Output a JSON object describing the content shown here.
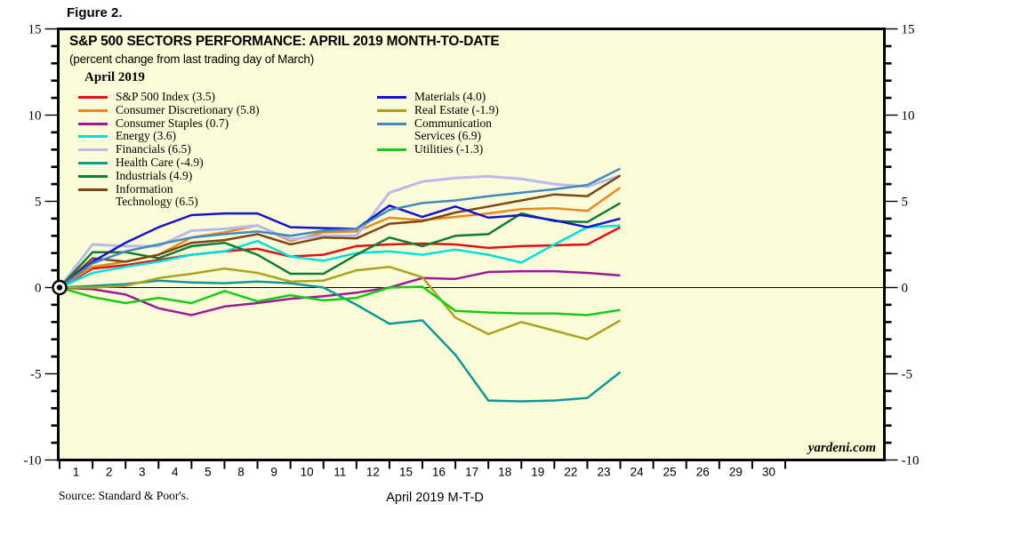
{
  "figure_label": "Figure 2.",
  "title": "S&P 500 SECTORS PERFORMANCE: APRIL 2019 MONTH-TO-DATE",
  "subtitle": "(percent change from last trading day of March)",
  "watermark": "yardeni.com",
  "source": "Source: Standard & Poor's.",
  "x_axis_title": "April 2019 M-T-D",
  "colors": {
    "plot_bg": "#FBFBD8",
    "border": "#000000",
    "zero_line": "#000000",
    "text": "#000000"
  },
  "legend": {
    "title": "April 2019",
    "columns": [
      [
        {
          "series_index": 0,
          "label_lines": [
            "S&P 500 Index (3.5)"
          ]
        },
        {
          "series_index": 1,
          "label_lines": [
            "Consumer Discretionary (5.8)"
          ]
        },
        {
          "series_index": 2,
          "label_lines": [
            "Consumer Staples (0.7)"
          ]
        },
        {
          "series_index": 3,
          "label_lines": [
            "Energy (3.6)"
          ]
        },
        {
          "series_index": 4,
          "label_lines": [
            "Financials (6.5)"
          ]
        },
        {
          "series_index": 5,
          "label_lines": [
            "Health Care (-4.9)"
          ]
        },
        {
          "series_index": 6,
          "label_lines": [
            "Industrials (4.9)"
          ]
        },
        {
          "series_index": 7,
          "label_lines": [
            "Information",
            "Technology (6.5)"
          ]
        }
      ],
      [
        {
          "series_index": 8,
          "label_lines": [
            "Materials (4.0)"
          ]
        },
        {
          "series_index": 9,
          "label_lines": [
            "Real Estate (-1.9)"
          ]
        },
        {
          "series_index": 10,
          "label_lines": [
            "Communication",
            "Services (6.9)"
          ]
        },
        {
          "series_index": 11,
          "label_lines": [
            "Utilities (-1.3)"
          ]
        }
      ]
    ]
  },
  "chart_data": {
    "type": "line",
    "title": "S&P 500 SECTORS PERFORMANCE: APRIL 2019 MONTH-TO-DATE",
    "subtitle": "(percent change from last trading day of March)",
    "xlabel": "April 2019 M-T-D",
    "ylabel": "percent change from last trading day of March",
    "ylim": [
      -10,
      15
    ],
    "y_ticks": [
      15,
      10,
      5,
      0,
      -5,
      -10
    ],
    "y_minor_tick_step": 1,
    "grid": false,
    "legend_position": "inside top-left, two columns",
    "x_tick_labels": [
      "1",
      "2",
      "3",
      "4",
      "5",
      "8",
      "9",
      "10",
      "11",
      "12",
      "15",
      "16",
      "17",
      "18",
      "19",
      "22",
      "23",
      "24",
      "25",
      "26",
      "29",
      "30"
    ],
    "x": [
      "Mar 29 base",
      "Apr 1",
      "Apr 2",
      "Apr 3",
      "Apr 4",
      "Apr 5",
      "Apr 8",
      "Apr 9",
      "Apr 10",
      "Apr 11",
      "Apr 12",
      "Apr 15",
      "Apr 16",
      "Apr 17",
      "Apr 18",
      "Apr 19",
      "Apr 22",
      "Apr 23"
    ],
    "origin_marker": "bullseye at (Mar 29, 0)",
    "series": [
      {
        "name": "S&P 500 Index",
        "final": 3.5,
        "color": "#E11212",
        "values": [
          0,
          1.1,
          1.3,
          1.6,
          1.9,
          2.1,
          2.25,
          1.8,
          1.9,
          2.4,
          2.5,
          2.55,
          2.5,
          2.3,
          2.4,
          2.45,
          2.5,
          3.5
        ]
      },
      {
        "name": "Consumer Discretionary",
        "final": 5.8,
        "color": "#E8891A",
        "values": [
          0,
          1.2,
          1.5,
          1.9,
          2.9,
          3.2,
          3.6,
          2.7,
          3.2,
          3.25,
          4.05,
          3.9,
          4.1,
          4.3,
          4.55,
          4.6,
          4.45,
          5.8
        ]
      },
      {
        "name": "Consumer Staples",
        "final": 0.7,
        "color": "#A0189A",
        "values": [
          0,
          -0.1,
          -0.4,
          -1.2,
          -1.6,
          -1.1,
          -0.9,
          -0.65,
          -0.5,
          -0.3,
          0.0,
          0.55,
          0.5,
          0.9,
          0.95,
          0.95,
          0.85,
          0.7
        ]
      },
      {
        "name": "Energy",
        "final": 3.6,
        "color": "#00DFDF",
        "values": [
          0,
          0.85,
          1.2,
          1.5,
          1.9,
          2.1,
          2.7,
          1.8,
          1.55,
          2.0,
          2.1,
          1.9,
          2.2,
          1.9,
          1.45,
          2.5,
          3.5,
          3.6
        ]
      },
      {
        "name": "Financials",
        "final": 6.5,
        "color": "#B9B9EF",
        "values": [
          0,
          2.5,
          2.4,
          2.4,
          3.3,
          3.4,
          3.6,
          2.8,
          3.0,
          3.0,
          5.5,
          6.15,
          6.35,
          6.45,
          6.3,
          6.0,
          5.85,
          6.5
        ]
      },
      {
        "name": "Health Care",
        "final": -4.9,
        "color": "#0E9898",
        "values": [
          0,
          0.1,
          0.2,
          0.4,
          0.3,
          0.25,
          0.35,
          0.25,
          0.0,
          -1.0,
          -2.1,
          -1.9,
          -3.9,
          -6.55,
          -6.6,
          -6.55,
          -6.4,
          -4.9
        ]
      },
      {
        "name": "Industrials",
        "final": 4.9,
        "color": "#0E7D33",
        "values": [
          0,
          2.05,
          2.05,
          1.7,
          2.4,
          2.6,
          1.9,
          0.8,
          0.8,
          1.9,
          2.9,
          2.4,
          3.0,
          3.1,
          4.3,
          3.85,
          3.8,
          4.9
        ]
      },
      {
        "name": "Information Technology",
        "final": 6.5,
        "color": "#7C4716",
        "values": [
          0,
          1.7,
          1.5,
          1.9,
          2.6,
          2.75,
          3.1,
          2.5,
          2.9,
          2.85,
          3.7,
          3.85,
          4.35,
          4.7,
          5.05,
          5.4,
          5.3,
          6.5
        ]
      },
      {
        "name": "Materials",
        "final": 4.0,
        "color": "#1414CE",
        "values": [
          0,
          1.5,
          2.6,
          3.5,
          4.2,
          4.3,
          4.3,
          3.5,
          3.45,
          3.4,
          4.75,
          4.1,
          4.7,
          4.05,
          4.2,
          3.9,
          3.5,
          4.0
        ]
      },
      {
        "name": "Real Estate",
        "final": -1.9,
        "color": "#ABA31E",
        "values": [
          0,
          0.0,
          0.1,
          0.55,
          0.8,
          1.1,
          0.85,
          0.35,
          0.4,
          1.0,
          1.2,
          0.6,
          -1.75,
          -2.7,
          -2.0,
          -2.5,
          -3.0,
          -1.9
        ]
      },
      {
        "name": "Communication Services",
        "final": 6.9,
        "color": "#4189C2",
        "values": [
          0,
          1.4,
          2.1,
          2.5,
          2.9,
          3.1,
          3.25,
          3.0,
          3.3,
          3.4,
          4.5,
          4.9,
          5.05,
          5.3,
          5.5,
          5.7,
          5.95,
          6.9
        ]
      },
      {
        "name": "Utilities",
        "final": -1.3,
        "color": "#15CC15",
        "values": [
          0,
          -0.55,
          -0.9,
          -0.6,
          -0.9,
          -0.2,
          -0.8,
          -0.45,
          -0.75,
          -0.6,
          0.0,
          0.05,
          -1.35,
          -1.45,
          -1.5,
          -1.5,
          -1.6,
          -1.3
        ]
      }
    ]
  }
}
